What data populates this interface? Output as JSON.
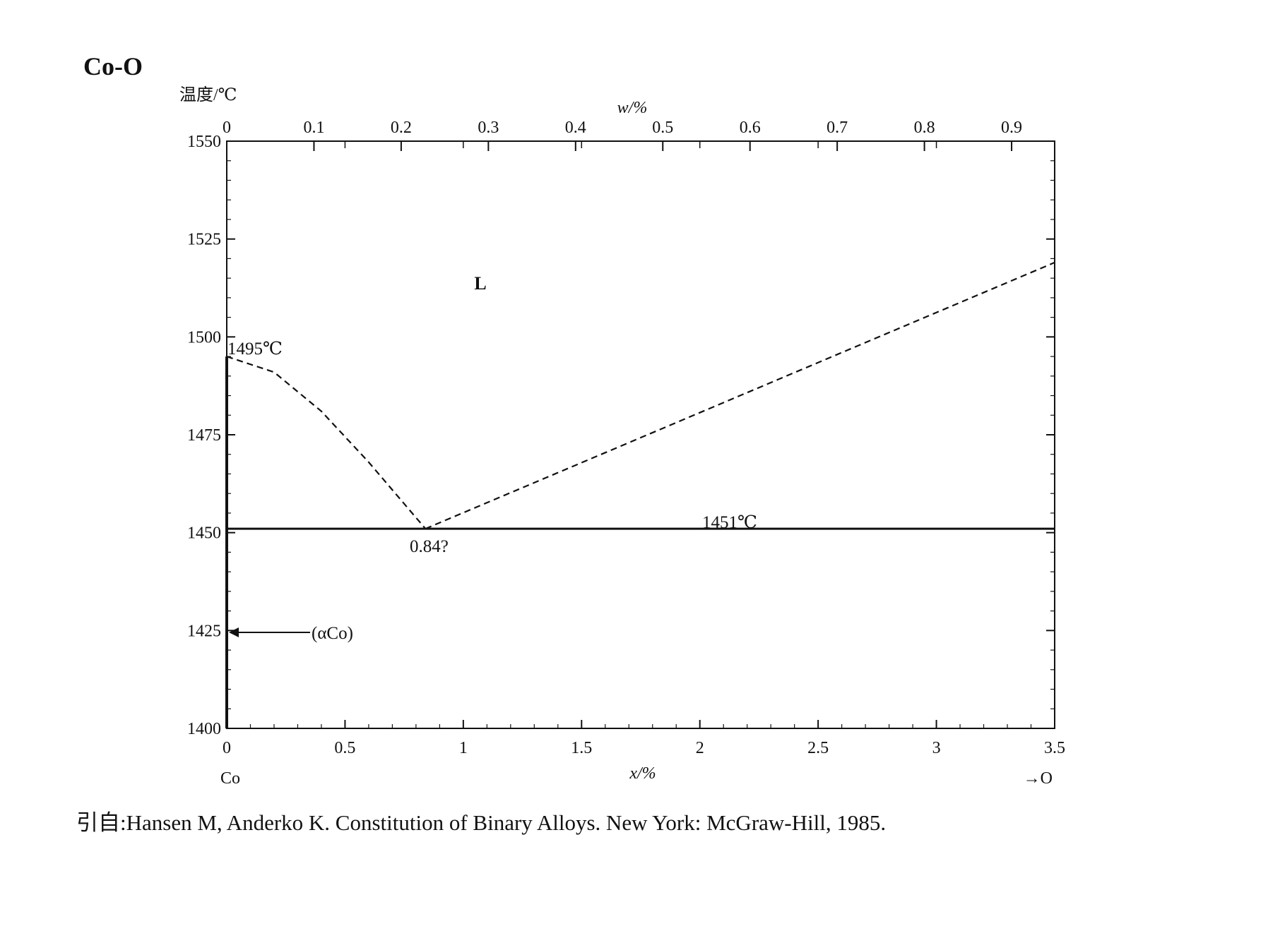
{
  "chart_data": {
    "type": "line",
    "title": "Co-O",
    "ylabel": "温度/℃",
    "xlabel": "x/%",
    "x2label": "w/%",
    "xlim": [
      0,
      3.5
    ],
    "ylim": [
      1400,
      1550
    ],
    "x_ticks": [
      "0",
      "0.5",
      "1",
      "1.5",
      "2",
      "2.5",
      "3",
      "3.5"
    ],
    "y_ticks": [
      "1400",
      "1425",
      "1450",
      "1475",
      "1500",
      "1525",
      "1550"
    ],
    "x2_ticks": [
      "0",
      "0.1",
      "0.2",
      "0.3",
      "0.4",
      "0.5",
      "0.6",
      "0.7",
      "0.8",
      "0.9"
    ],
    "left_element": "Co",
    "right_element": "→O",
    "phase_label": "L",
    "series": [
      {
        "style": "dashed",
        "x": [
          0,
          0.2,
          0.4,
          0.6,
          0.84
        ],
        "y": [
          1495,
          1491,
          1481,
          1468,
          1451
        ]
      },
      {
        "style": "dashed",
        "x": [
          0.84,
          3.5
        ],
        "y": [
          1451,
          1519
        ]
      },
      {
        "style": "solid",
        "x": [
          0,
          3.5
        ],
        "y": [
          1451,
          1451
        ]
      },
      {
        "style": "solid-thick",
        "x": [
          0,
          0
        ],
        "y": [
          1400,
          1495
        ]
      }
    ],
    "annotations": {
      "melting_point": "1495℃",
      "eutectic_temp": "1451℃",
      "eutectic_comp": "0.84?",
      "solid_phase": "(αCo)"
    },
    "grid": false,
    "legend": "none"
  },
  "caption": "引自:Hansen M, Anderko K. Constitution of Binary Alloys. New York: McGraw-Hill, 1985."
}
